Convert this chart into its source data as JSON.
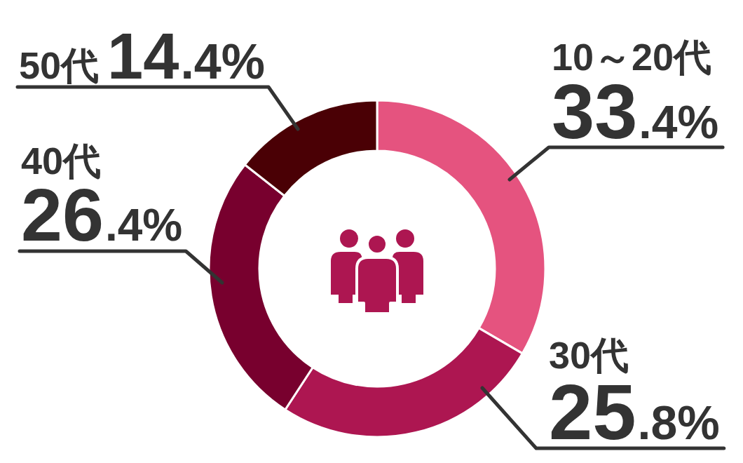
{
  "chart_data": {
    "type": "donut",
    "categories": [
      "10～20代",
      "30代",
      "40代",
      "50代"
    ],
    "values": [
      33.4,
      25.8,
      26.4,
      14.4
    ],
    "colors": [
      "#e5537f",
      "#ad1651",
      "#78002e",
      "#4a0005"
    ],
    "value_labels": [
      "33.4%",
      "25.8%",
      "26.4%",
      "14.4%"
    ]
  }
}
